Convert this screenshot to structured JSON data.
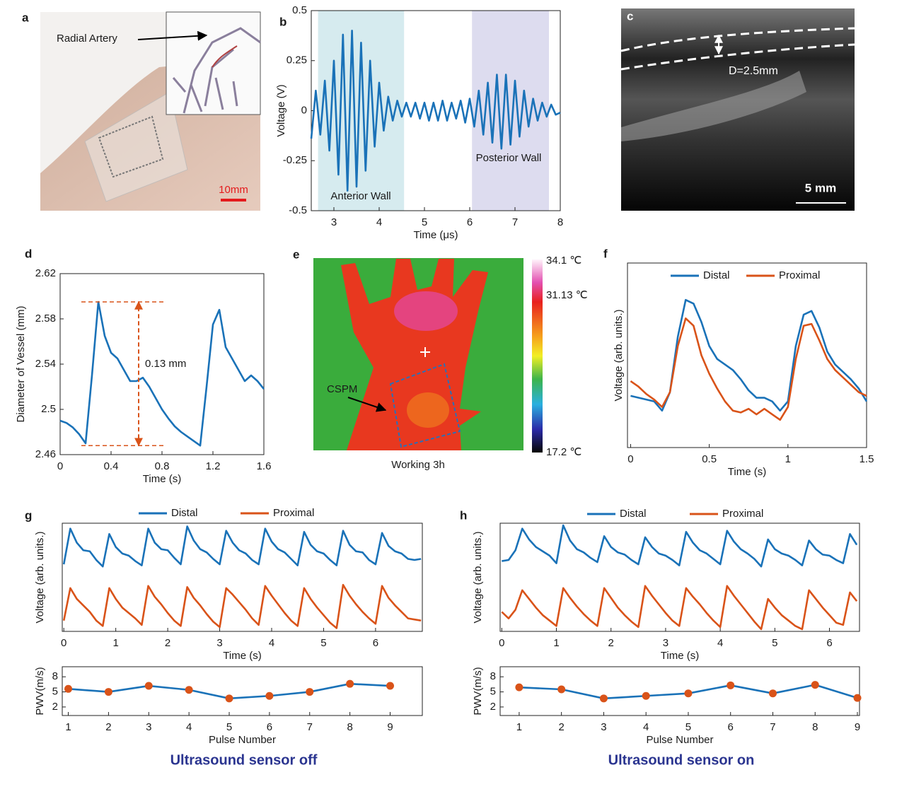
{
  "chart_data": [
    {
      "type": "line",
      "panel": "b",
      "xlabel": "Time (μs)",
      "ylabel": "Voltage (V)",
      "x": [
        2.5,
        2.6,
        2.7,
        2.8,
        2.9,
        3.0,
        3.1,
        3.2,
        3.3,
        3.4,
        3.5,
        3.6,
        3.7,
        3.8,
        3.9,
        4.0,
        4.1,
        4.2,
        4.3,
        4.4,
        4.5,
        4.6,
        4.7,
        4.8,
        4.9,
        5.0,
        5.1,
        5.2,
        5.3,
        5.4,
        5.5,
        5.6,
        5.7,
        5.8,
        5.9,
        6.0,
        6.1,
        6.2,
        6.3,
        6.4,
        6.5,
        6.6,
        6.7,
        6.8,
        6.9,
        7.0,
        7.1,
        7.2,
        7.3,
        7.4,
        7.5,
        7.6,
        7.7,
        7.8,
        7.9,
        8.0
      ],
      "series": [
        {
          "color": "#1a72b8",
          "values": [
            -0.14,
            0.1,
            -0.12,
            0.15,
            -0.2,
            0.25,
            -0.32,
            0.38,
            -0.4,
            0.4,
            -0.38,
            0.34,
            -0.3,
            0.25,
            -0.18,
            0.14,
            -0.1,
            0.07,
            -0.05,
            0.05,
            -0.03,
            0.04,
            -0.03,
            0.04,
            -0.04,
            0.04,
            -0.05,
            0.04,
            -0.05,
            0.05,
            -0.05,
            0.04,
            -0.04,
            0.05,
            -0.06,
            0.06,
            -0.08,
            0.1,
            -0.12,
            0.14,
            -0.16,
            0.18,
            -0.19,
            0.18,
            -0.17,
            0.15,
            -0.13,
            0.1,
            -0.08,
            0.06,
            -0.05,
            0.04,
            -0.03,
            0.03,
            -0.02,
            -0.01
          ]
        }
      ],
      "spans": [
        {
          "xlim": [
            2.65,
            4.55
          ],
          "color": "#d6ebef",
          "label": "Anterior Wall"
        },
        {
          "xlim": [
            6.05,
            7.75
          ],
          "color": "#dddcef",
          "label": "Posterior Wall"
        }
      ],
      "xlim": [
        2.5,
        8
      ],
      "ylim": [
        -0.5,
        0.5
      ],
      "xticks": [
        3,
        4,
        5,
        6,
        7,
        8
      ],
      "yticks": [
        -0.5,
        -0.25,
        0,
        0.25,
        0.5
      ]
    },
    {
      "type": "line",
      "panel": "d",
      "xlabel": "Time (s)",
      "ylabel": "Diameter of Vessel (mm)",
      "x": [
        0,
        0.05,
        0.1,
        0.15,
        0.2,
        0.25,
        0.3,
        0.35,
        0.4,
        0.45,
        0.5,
        0.55,
        0.6,
        0.65,
        0.7,
        0.75,
        0.8,
        0.85,
        0.9,
        0.95,
        1.0,
        1.05,
        1.1,
        1.15,
        1.2,
        1.25,
        1.3,
        1.35,
        1.4,
        1.45,
        1.5,
        1.55,
        1.6
      ],
      "series": [
        {
          "color": "#1a72b8",
          "values": [
            2.49,
            2.488,
            2.484,
            2.478,
            2.47,
            2.53,
            2.595,
            2.565,
            2.55,
            2.545,
            2.535,
            2.525,
            2.525,
            2.528,
            2.52,
            2.51,
            2.5,
            2.492,
            2.485,
            2.48,
            2.476,
            2.472,
            2.468,
            2.52,
            2.575,
            2.588,
            2.555,
            2.545,
            2.535,
            2.525,
            2.53,
            2.525,
            2.518
          ]
        }
      ],
      "annotation": {
        "text": "0.13 mm",
        "color": "#d95319",
        "y": [
          2.468,
          2.595
        ]
      },
      "xlim": [
        0,
        1.6
      ],
      "ylim": [
        2.46,
        2.62
      ],
      "xticks": [
        0,
        0.4,
        0.8,
        1.2,
        1.6
      ],
      "yticks": [
        2.46,
        2.5,
        2.54,
        2.58,
        2.62
      ]
    },
    {
      "type": "line",
      "panel": "f",
      "xlabel": "Time (s)",
      "ylabel": "Voltage (arb. units.)",
      "x": [
        0,
        0.05,
        0.1,
        0.15,
        0.2,
        0.25,
        0.3,
        0.35,
        0.4,
        0.45,
        0.5,
        0.55,
        0.6,
        0.65,
        0.7,
        0.75,
        0.8,
        0.85,
        0.9,
        0.95,
        1.0,
        1.05,
        1.1,
        1.15,
        1.2,
        1.25,
        1.3,
        1.35,
        1.4,
        1.45,
        1.5
      ],
      "series": [
        {
          "name": "Distal",
          "color": "#1a72b8",
          "values": [
            0.28,
            0.27,
            0.26,
            0.25,
            0.2,
            0.3,
            0.6,
            0.8,
            0.78,
            0.68,
            0.55,
            0.48,
            0.45,
            0.42,
            0.37,
            0.31,
            0.27,
            0.27,
            0.25,
            0.2,
            0.25,
            0.55,
            0.72,
            0.74,
            0.65,
            0.52,
            0.45,
            0.41,
            0.37,
            0.32,
            0.25
          ]
        },
        {
          "name": "Proximal",
          "color": "#d95319",
          "values": [
            0.36,
            0.33,
            0.29,
            0.26,
            0.22,
            0.3,
            0.55,
            0.7,
            0.66,
            0.5,
            0.4,
            0.32,
            0.25,
            0.2,
            0.19,
            0.21,
            0.18,
            0.21,
            0.18,
            0.15,
            0.22,
            0.48,
            0.66,
            0.67,
            0.58,
            0.48,
            0.42,
            0.38,
            0.34,
            0.3,
            0.28
          ]
        }
      ],
      "xlim": [
        -0.02,
        1.5
      ],
      "ylim": [
        0,
        1
      ],
      "xticks": [
        0,
        0.5,
        1,
        1.5
      ],
      "legend": "top"
    },
    {
      "type": "line",
      "panel": "g",
      "xlabel": "Time (s)",
      "ylabel": "Voltage (arb. units.)",
      "x": [
        0,
        0.125,
        0.25,
        0.375,
        0.5,
        0.625,
        0.75,
        0.875,
        1,
        1.125,
        1.25,
        1.375,
        1.5,
        1.625,
        1.75,
        1.875,
        2,
        2.125,
        2.25,
        2.375,
        2.5,
        2.625,
        2.75,
        2.875,
        3,
        3.125,
        3.25,
        3.375,
        3.5,
        3.625,
        3.75,
        3.875,
        4,
        4.125,
        4.25,
        4.375,
        4.5,
        4.625,
        4.75,
        4.875,
        5,
        5.125,
        5.25,
        5.375,
        5.5,
        5.625,
        5.75,
        5.875,
        6,
        6.125,
        6.25,
        6.375,
        6.5,
        6.625,
        6.75,
        6.875
      ],
      "series": [
        {
          "name": "Distal",
          "color": "#1a72b8",
          "values": [
            0.62,
            0.95,
            0.82,
            0.75,
            0.74,
            0.66,
            0.6,
            0.9,
            0.78,
            0.72,
            0.7,
            0.65,
            0.61,
            0.95,
            0.82,
            0.76,
            0.75,
            0.68,
            0.62,
            0.97,
            0.84,
            0.76,
            0.73,
            0.67,
            0.62,
            0.93,
            0.82,
            0.75,
            0.72,
            0.66,
            0.62,
            0.95,
            0.83,
            0.76,
            0.73,
            0.67,
            0.61,
            0.92,
            0.8,
            0.74,
            0.72,
            0.66,
            0.61,
            0.93,
            0.8,
            0.74,
            0.73,
            0.66,
            0.62,
            0.91,
            0.79,
            0.74,
            0.72,
            0.67,
            0.66,
            0.67
          ]
        },
        {
          "name": "Proximal",
          "color": "#d95319",
          "values": [
            0.1,
            0.4,
            0.3,
            0.24,
            0.18,
            0.1,
            0.05,
            0.4,
            0.3,
            0.22,
            0.17,
            0.12,
            0.06,
            0.42,
            0.32,
            0.25,
            0.17,
            0.1,
            0.05,
            0.41,
            0.31,
            0.24,
            0.16,
            0.09,
            0.04,
            0.4,
            0.34,
            0.27,
            0.2,
            0.12,
            0.06,
            0.42,
            0.33,
            0.25,
            0.17,
            0.1,
            0.05,
            0.4,
            0.3,
            0.22,
            0.15,
            0.08,
            0.03,
            0.43,
            0.33,
            0.25,
            0.18,
            0.12,
            0.07,
            0.42,
            0.31,
            0.24,
            0.18,
            0.12,
            0.11,
            0.1
          ]
        }
      ],
      "xlim": [
        -0.03,
        6.9
      ],
      "ylim": [
        0,
        1
      ],
      "xticks": [
        0,
        1,
        2,
        3,
        4,
        5,
        6
      ],
      "legend": "top"
    },
    {
      "type": "line",
      "markers": true,
      "marker_color": "#d95319",
      "xlabel": "Pulse Number",
      "ylabel": "PWV(m/s)",
      "caption": "Ultrasound sensor off",
      "x": [
        1,
        2,
        3,
        4,
        5,
        6,
        7,
        8,
        9
      ],
      "series": [
        {
          "color": "#1a72b8",
          "values": [
            5.6,
            5.0,
            6.2,
            5.4,
            3.7,
            4.2,
            5.0,
            6.6,
            6.2
          ]
        }
      ],
      "xlim": [
        0.85,
        9.8
      ],
      "ylim": [
        0.3,
        10
      ],
      "xticks": [
        1,
        2,
        3,
        4,
        5,
        6,
        7,
        8,
        9
      ],
      "yticks": [
        2,
        5,
        8
      ]
    },
    {
      "type": "line",
      "panel": "h",
      "xlabel": "Time (s)",
      "ylabel": "Voltage (arb. units.)",
      "x": [
        0,
        0.125,
        0.25,
        0.375,
        0.5,
        0.625,
        0.75,
        0.875,
        1,
        1.125,
        1.25,
        1.375,
        1.5,
        1.625,
        1.75,
        1.875,
        2,
        2.125,
        2.25,
        2.375,
        2.5,
        2.625,
        2.75,
        2.875,
        3,
        3.125,
        3.25,
        3.375,
        3.5,
        3.625,
        3.75,
        3.875,
        4,
        4.125,
        4.25,
        4.375,
        4.5,
        4.625,
        4.75,
        4.875,
        5,
        5.125,
        5.25,
        5.375,
        5.5,
        5.625,
        5.75,
        5.875,
        6,
        6.125,
        6.25,
        6.375,
        6.5
      ],
      "series": [
        {
          "name": "Distal",
          "color": "#1a72b8",
          "values": [
            0.65,
            0.66,
            0.75,
            0.95,
            0.85,
            0.78,
            0.74,
            0.7,
            0.63,
            0.98,
            0.84,
            0.76,
            0.73,
            0.68,
            0.64,
            0.88,
            0.78,
            0.73,
            0.71,
            0.66,
            0.62,
            0.87,
            0.78,
            0.72,
            0.7,
            0.66,
            0.61,
            0.92,
            0.82,
            0.75,
            0.72,
            0.67,
            0.62,
            0.93,
            0.83,
            0.76,
            0.72,
            0.67,
            0.6,
            0.85,
            0.76,
            0.72,
            0.7,
            0.66,
            0.61,
            0.84,
            0.76,
            0.71,
            0.7,
            0.66,
            0.63,
            0.9,
            0.8
          ]
        },
        {
          "name": "Proximal",
          "color": "#d95319",
          "values": [
            0.18,
            0.12,
            0.2,
            0.38,
            0.3,
            0.22,
            0.15,
            0.1,
            0.05,
            0.4,
            0.31,
            0.23,
            0.16,
            0.1,
            0.05,
            0.4,
            0.31,
            0.22,
            0.15,
            0.09,
            0.04,
            0.42,
            0.33,
            0.25,
            0.17,
            0.1,
            0.05,
            0.4,
            0.32,
            0.25,
            0.17,
            0.1,
            0.04,
            0.42,
            0.33,
            0.25,
            0.17,
            0.09,
            0.02,
            0.3,
            0.22,
            0.15,
            0.1,
            0.05,
            0.02,
            0.38,
            0.3,
            0.22,
            0.15,
            0.08,
            0.06,
            0.36,
            0.28
          ]
        }
      ],
      "xlim": [
        -0.03,
        6.55
      ],
      "ylim": [
        0,
        1
      ],
      "xticks": [
        0,
        1,
        2,
        3,
        4,
        5,
        6
      ],
      "legend": "top"
    },
    {
      "type": "line",
      "markers": true,
      "marker_color": "#d95319",
      "xlabel": "Pulse Number",
      "ylabel": "PWV(m/s)",
      "caption": "Ultrasound sensor on",
      "x": [
        1,
        2,
        3,
        4,
        5,
        6,
        7,
        8,
        9
      ],
      "series": [
        {
          "color": "#1a72b8",
          "values": [
            5.9,
            5.5,
            3.7,
            4.2,
            4.7,
            6.3,
            4.7,
            6.4,
            3.8
          ]
        }
      ],
      "xlim": [
        0.55,
        9.05
      ],
      "ylim": [
        0.3,
        10
      ],
      "xticks": [
        1,
        2,
        3,
        4,
        5,
        6,
        7,
        8,
        9
      ],
      "yticks": [
        2,
        5,
        8
      ]
    }
  ],
  "panels": [
    {
      "label": "a",
      "texts": [
        "Radial Artery",
        "10mm"
      ]
    },
    {
      "label": "c",
      "texts": [
        "D=2.5mm",
        "5 mm"
      ]
    },
    {
      "label": "e",
      "texts": [
        "CSPM",
        "Working 3h"
      ],
      "colorbar": [
        "34.1 ℃",
        "31.13 ℃",
        "17.2 ℃"
      ]
    }
  ]
}
